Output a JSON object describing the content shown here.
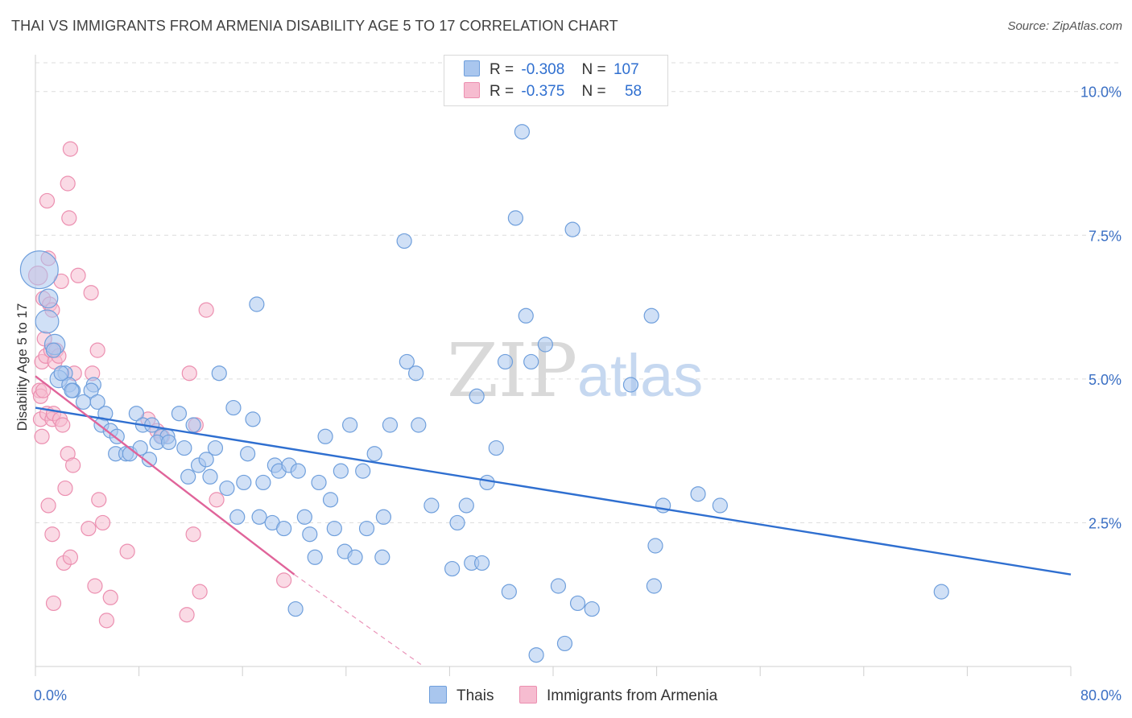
{
  "title": "THAI VS IMMIGRANTS FROM ARMENIA DISABILITY AGE 5 TO 17 CORRELATION CHART",
  "source": "Source: ZipAtlas.com",
  "watermark": {
    "zip": "ZIP",
    "atlas": "atlas"
  },
  "legend": {
    "rows": [
      {
        "r_label": "R =",
        "r_value": "-0.308",
        "n_label": "N =",
        "n_value": "107"
      },
      {
        "r_label": "R =",
        "r_value": "-0.375",
        "n_label": "N =",
        "n_value": "58"
      }
    ]
  },
  "bottom_legend": [
    "Thais",
    "Immigrants from Armenia"
  ],
  "colors": {
    "thais_fill": "#a9c6ee",
    "thais_stroke": "#6f9fdc",
    "thais_line": "#2f6fd0",
    "armenia_fill": "#f6bcd0",
    "armenia_stroke": "#ec8fb0",
    "armenia_line": "#e0649a",
    "grid": "#dcdcdc",
    "tick_text": "#3a6fc4"
  },
  "chart_data": {
    "type": "scatter",
    "title": "THAI VS IMMIGRANTS FROM ARMENIA DISABILITY AGE 5 TO 17 CORRELATION CHART",
    "xlabel": "",
    "ylabel": "Disability Age 5 to 17",
    "xlim": [
      0,
      80
    ],
    "ylim": [
      0,
      10.5
    ],
    "x_tick_labels": [
      "0.0%",
      "80.0%"
    ],
    "y_ticks": [
      2.5,
      5.0,
      7.5,
      10.0
    ],
    "y_tick_labels": [
      "2.5%",
      "5.0%",
      "7.5%",
      "10.0%"
    ],
    "grid": true,
    "legend_placement": "top-center",
    "series": [
      {
        "name": "Thais",
        "r": -0.308,
        "n": 107,
        "trend": {
          "x": [
            0,
            80
          ],
          "y": [
            4.5,
            1.6
          ]
        },
        "points": [
          [
            0.3,
            6.9,
            2.6
          ],
          [
            0.9,
            6.0,
            1.6
          ],
          [
            1.0,
            6.4,
            1.3
          ],
          [
            1.5,
            5.6,
            1.4
          ],
          [
            1.4,
            5.5,
            1.0
          ],
          [
            2.3,
            5.1,
            1.0
          ],
          [
            1.8,
            5.0,
            1.2
          ],
          [
            2.6,
            4.9,
            1.0
          ],
          [
            2.9,
            4.8,
            1.0
          ],
          [
            4.5,
            4.9,
            1.0
          ],
          [
            4.3,
            4.8,
            1.0
          ],
          [
            3.7,
            4.6,
            1.0
          ],
          [
            4.8,
            4.6,
            1.0
          ],
          [
            5.4,
            4.4,
            1.0
          ],
          [
            5.1,
            4.2,
            1.0
          ],
          [
            5.8,
            4.1,
            1.0
          ],
          [
            6.3,
            4.0,
            1.0
          ],
          [
            7.8,
            4.4,
            1.0
          ],
          [
            8.3,
            4.2,
            1.0
          ],
          [
            9.0,
            4.2,
            1.0
          ],
          [
            9.7,
            4.0,
            1.0
          ],
          [
            10.2,
            4.0,
            1.0
          ],
          [
            11.1,
            4.4,
            1.0
          ],
          [
            12.2,
            4.2,
            1.0
          ],
          [
            6.2,
            3.7,
            1.0
          ],
          [
            7.0,
            3.7,
            1.0
          ],
          [
            7.3,
            3.7,
            1.0
          ],
          [
            8.1,
            3.8,
            1.0
          ],
          [
            9.4,
            3.9,
            1.0
          ],
          [
            10.3,
            3.9,
            1.0
          ],
          [
            11.5,
            3.8,
            1.0
          ],
          [
            8.8,
            3.6,
            1.0
          ],
          [
            12.6,
            3.5,
            1.0
          ],
          [
            11.8,
            3.3,
            1.0
          ],
          [
            13.2,
            3.6,
            1.0
          ],
          [
            13.5,
            3.3,
            1.0
          ],
          [
            13.9,
            3.8,
            1.0
          ],
          [
            14.2,
            5.1,
            1.0
          ],
          [
            14.8,
            3.1,
            1.0
          ],
          [
            15.3,
            4.5,
            1.0
          ],
          [
            15.6,
            2.6,
            1.0
          ],
          [
            16.1,
            3.2,
            1.0
          ],
          [
            16.4,
            3.7,
            1.0
          ],
          [
            17.3,
            2.6,
            1.0
          ],
          [
            16.8,
            4.3,
            1.0
          ],
          [
            17.1,
            6.3,
            1.0
          ],
          [
            17.6,
            3.2,
            1.0
          ],
          [
            18.3,
            2.5,
            1.0
          ],
          [
            18.5,
            3.5,
            1.0
          ],
          [
            18.8,
            3.4,
            1.0
          ],
          [
            19.2,
            2.4,
            1.0
          ],
          [
            19.6,
            3.5,
            1.0
          ],
          [
            20.3,
            3.4,
            1.0
          ],
          [
            20.1,
            1.0,
            1.0
          ],
          [
            20.8,
            2.6,
            1.0
          ],
          [
            21.2,
            2.3,
            1.0
          ],
          [
            21.6,
            1.9,
            1.0
          ],
          [
            21.9,
            3.2,
            1.0
          ],
          [
            22.4,
            4.0,
            1.0
          ],
          [
            22.8,
            2.9,
            1.0
          ],
          [
            23.1,
            2.4,
            1.0
          ],
          [
            23.6,
            3.4,
            1.0
          ],
          [
            23.9,
            2.0,
            1.0
          ],
          [
            24.3,
            4.2,
            1.0
          ],
          [
            24.7,
            1.9,
            1.0
          ],
          [
            25.3,
            3.4,
            1.0
          ],
          [
            25.6,
            2.4,
            1.0
          ],
          [
            26.2,
            3.7,
            1.0
          ],
          [
            26.8,
            1.9,
            1.0
          ],
          [
            26.9,
            2.6,
            1.0
          ],
          [
            27.4,
            4.2,
            1.0
          ],
          [
            28.5,
            7.4,
            1.0
          ],
          [
            28.7,
            5.3,
            1.0
          ],
          [
            29.4,
            5.1,
            1.0
          ],
          [
            29.6,
            4.2,
            1.0
          ],
          [
            30.6,
            2.8,
            1.0
          ],
          [
            32.6,
            2.5,
            1.0
          ],
          [
            33.3,
            2.8,
            1.0
          ],
          [
            32.2,
            1.7,
            1.0
          ],
          [
            33.7,
            1.8,
            1.0
          ],
          [
            34.5,
            1.8,
            1.0
          ],
          [
            34.1,
            4.7,
            1.0
          ],
          [
            34.9,
            3.2,
            1.0
          ],
          [
            35.6,
            3.8,
            1.0
          ],
          [
            36.3,
            5.3,
            1.0
          ],
          [
            36.6,
            1.3,
            1.0
          ],
          [
            37.1,
            7.8,
            1.0
          ],
          [
            37.6,
            9.3,
            1.0
          ],
          [
            38.3,
            5.3,
            1.0
          ],
          [
            37.9,
            6.1,
            1.0
          ],
          [
            38.7,
            0.2,
            1.0
          ],
          [
            39.4,
            5.6,
            1.0
          ],
          [
            40.4,
            1.4,
            1.0
          ],
          [
            40.9,
            0.4,
            1.0
          ],
          [
            41.5,
            7.6,
            1.0
          ],
          [
            41.9,
            1.1,
            1.0
          ],
          [
            43.0,
            1.0,
            1.0
          ],
          [
            46.0,
            4.9,
            1.0
          ],
          [
            47.6,
            6.1,
            1.0
          ],
          [
            47.8,
            1.4,
            1.0
          ],
          [
            47.9,
            2.1,
            1.0
          ],
          [
            48.5,
            2.8,
            1.0
          ],
          [
            51.2,
            3.0,
            1.0
          ],
          [
            52.9,
            2.8,
            1.0
          ],
          [
            70.0,
            1.3,
            1.0
          ],
          [
            2.0,
            5.1,
            1.0
          ],
          [
            2.8,
            4.8,
            1.0
          ]
        ]
      },
      {
        "name": "Immigrants from Armenia",
        "r": -0.375,
        "n": 58,
        "trend": {
          "x": [
            0,
            20
          ],
          "y": [
            5.05,
            1.6
          ]
        },
        "trend_dashed": {
          "x": [
            20,
            30
          ],
          "y": [
            1.6,
            0.0
          ]
        },
        "points": [
          [
            0.2,
            6.8,
            1.3
          ],
          [
            0.3,
            4.8,
            1.0
          ],
          [
            0.4,
            4.7,
            1.0
          ],
          [
            0.4,
            4.3,
            1.0
          ],
          [
            0.5,
            5.3,
            1.0
          ],
          [
            0.6,
            6.4,
            1.0
          ],
          [
            0.7,
            5.7,
            1.0
          ],
          [
            0.8,
            5.4,
            1.0
          ],
          [
            0.9,
            4.4,
            1.0
          ],
          [
            0.5,
            4.0,
            1.0
          ],
          [
            0.9,
            8.1,
            1.0
          ],
          [
            1.0,
            7.1,
            1.0
          ],
          [
            1.1,
            6.3,
            1.0
          ],
          [
            1.2,
            5.5,
            1.0
          ],
          [
            1.3,
            6.2,
            1.0
          ],
          [
            1.3,
            4.3,
            1.0
          ],
          [
            1.4,
            4.4,
            1.0
          ],
          [
            1.5,
            5.3,
            1.0
          ],
          [
            1.6,
            5.5,
            1.0
          ],
          [
            1.0,
            2.8,
            1.0
          ],
          [
            1.3,
            2.3,
            1.0
          ],
          [
            1.4,
            1.1,
            1.0
          ],
          [
            1.9,
            4.3,
            1.0
          ],
          [
            2.0,
            6.7,
            1.0
          ],
          [
            2.1,
            4.2,
            1.0
          ],
          [
            2.2,
            1.8,
            1.0
          ],
          [
            2.3,
            3.1,
            1.0
          ],
          [
            2.5,
            3.7,
            1.0
          ],
          [
            2.6,
            7.8,
            1.0
          ],
          [
            2.5,
            8.4,
            1.0
          ],
          [
            2.7,
            9.0,
            1.0
          ],
          [
            2.9,
            3.5,
            1.0
          ],
          [
            3.0,
            5.1,
            1.0
          ],
          [
            3.3,
            6.8,
            1.0
          ],
          [
            2.7,
            1.9,
            1.0
          ],
          [
            4.1,
            2.4,
            1.0
          ],
          [
            4.3,
            6.5,
            1.0
          ],
          [
            4.4,
            5.1,
            1.0
          ],
          [
            4.6,
            1.4,
            1.0
          ],
          [
            4.8,
            5.5,
            1.0
          ],
          [
            4.9,
            2.9,
            1.0
          ],
          [
            5.2,
            2.5,
            1.0
          ],
          [
            5.5,
            0.8,
            1.0
          ],
          [
            5.8,
            1.2,
            1.0
          ],
          [
            7.1,
            2.0,
            1.0
          ],
          [
            8.7,
            4.3,
            1.0
          ],
          [
            9.4,
            4.1,
            1.0
          ],
          [
            9.8,
            4.0,
            1.0
          ],
          [
            11.7,
            0.9,
            1.0
          ],
          [
            11.9,
            5.1,
            1.0
          ],
          [
            12.2,
            2.3,
            1.0
          ],
          [
            12.4,
            4.2,
            1.0
          ],
          [
            12.7,
            1.3,
            1.0
          ],
          [
            13.2,
            6.2,
            1.0
          ],
          [
            14.0,
            2.9,
            1.0
          ],
          [
            19.2,
            1.5,
            1.0
          ],
          [
            0.6,
            4.8,
            1.0
          ],
          [
            1.8,
            5.4,
            1.0
          ]
        ]
      }
    ]
  }
}
